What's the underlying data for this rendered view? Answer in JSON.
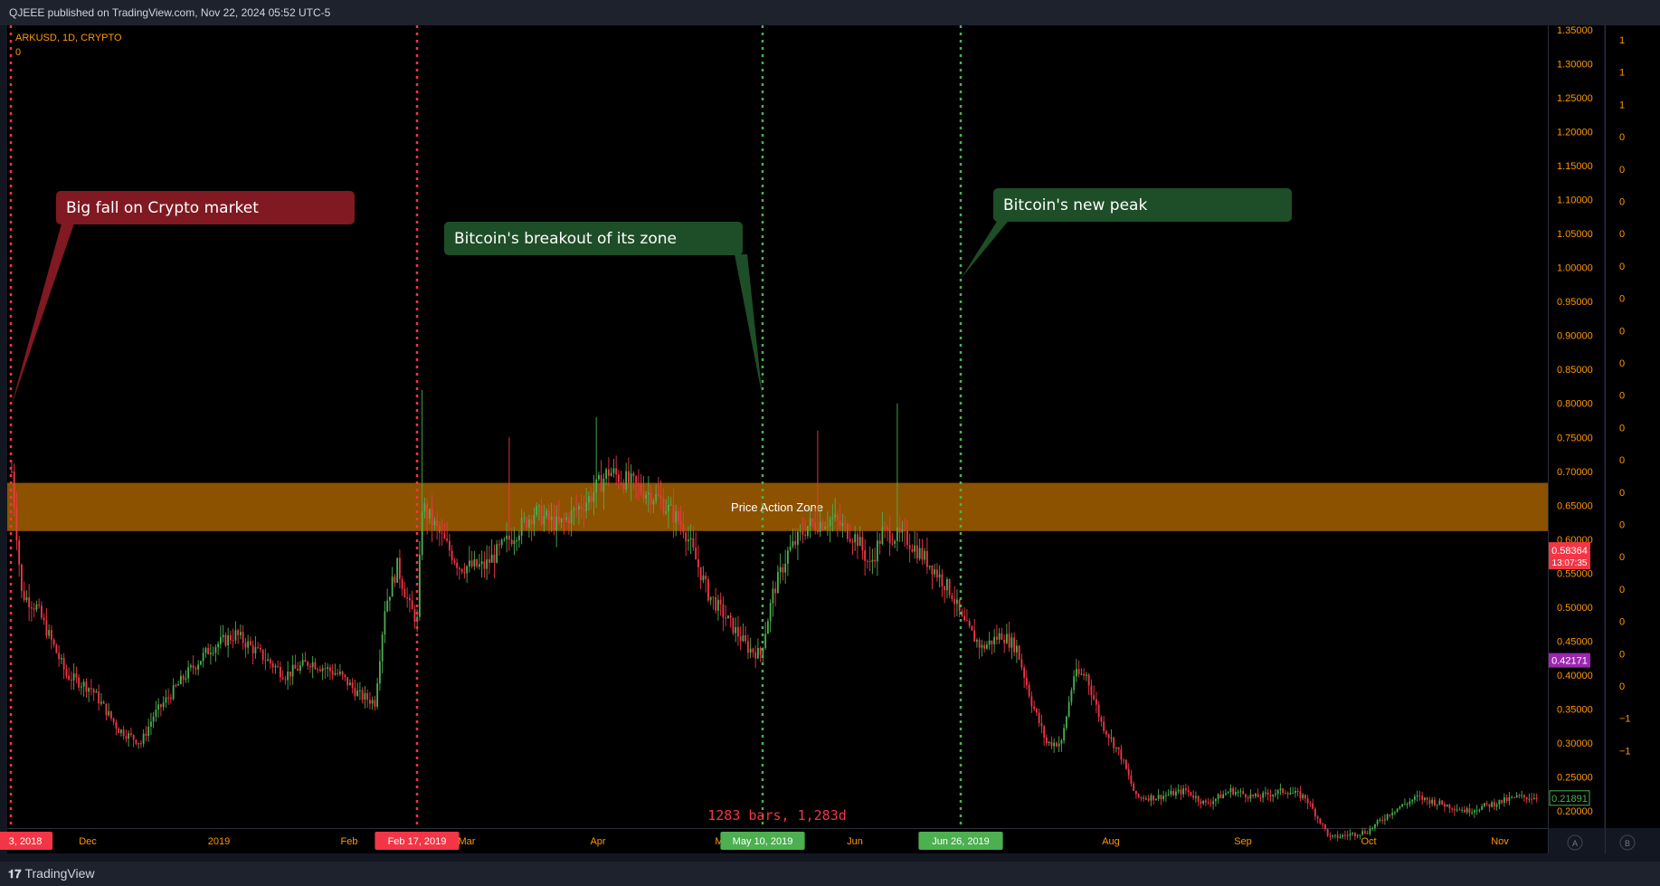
{
  "header": {
    "published": "QJEEE published on TradingView.com, Nov 22, 2024 05:52 UTC-5"
  },
  "footer": {
    "brand": "TradingView"
  },
  "symbol_info": {
    "title": "ARKUSD, 1D, CRYPTO",
    "value": "0"
  },
  "chart_data": {
    "type": "candlestick",
    "title": "ARKUSD, 1D, CRYPTO",
    "x_ticks": [
      "3, 2018",
      "Dec",
      "2019",
      "Feb",
      "Feb 17, 2019",
      "Mar",
      "Apr",
      "Ma",
      "May 10, 2019",
      "Jun",
      "Jun 26, 2019",
      "Aug",
      "Sep",
      "Oct",
      "Nov"
    ],
    "y_ticks": [
      "1.35000",
      "1.30000",
      "1.25000",
      "1.20000",
      "1.15000",
      "1.10000",
      "1.05000",
      "1.00000",
      "0.95000",
      "0.90000",
      "0.85000",
      "0.80000",
      "0.75000",
      "0.70000",
      "0.65000",
      "0.60000",
      "0.55000",
      "0.50000",
      "0.45000",
      "0.40000",
      "0.35000",
      "0.30000",
      "0.25000",
      "0.20000"
    ],
    "ylim": [
      0.175,
      1.36
    ],
    "secondary_axis_ticks": [
      "1",
      "1",
      "1",
      "0",
      "0",
      "0",
      "0",
      "0",
      "0",
      "0",
      "0",
      "0",
      "0",
      "0",
      "0",
      "0",
      "0",
      "0",
      "0",
      "0",
      "0",
      "−1",
      "−1"
    ],
    "price_labels": {
      "current": "0.58364",
      "countdown": "13:07:35",
      "purple": "0.42171",
      "green": "0.21891"
    },
    "price_action_zone": {
      "label": "Price Action Zone",
      "low": 0.612,
      "high": 0.683
    },
    "vertical_markers": [
      {
        "label": "3, 2018",
        "color": "#f23645"
      },
      {
        "label": "Feb 17, 2019",
        "color": "#f23645"
      },
      {
        "label": "May 10, 2019",
        "color": "#4caf50"
      },
      {
        "label": "Jun 26, 2019",
        "color": "#4caf50"
      }
    ],
    "callouts": [
      {
        "text": "Big fall on Crypto market",
        "color": "#801922"
      },
      {
        "text": "Bitcoin's breakout of its zone",
        "color": "#1e4e27"
      },
      {
        "text": "Bitcoin's new peak",
        "color": "#1e4e27"
      }
    ],
    "range_measure": "1283 bars, 1,283d",
    "colors": {
      "up": "#4caf50",
      "down": "#f23645",
      "zone": "#8c5200",
      "axis_text": "#ff9800"
    },
    "keyframes": [
      [
        0,
        0.7
      ],
      [
        4,
        0.52
      ],
      [
        10,
        0.5
      ],
      [
        22,
        0.4
      ],
      [
        32,
        0.38
      ],
      [
        43,
        0.32
      ],
      [
        52,
        0.3
      ],
      [
        57,
        0.34
      ],
      [
        70,
        0.4
      ],
      [
        80,
        0.44
      ],
      [
        90,
        0.46
      ],
      [
        100,
        0.43
      ],
      [
        110,
        0.4
      ],
      [
        120,
        0.42
      ],
      [
        132,
        0.4
      ],
      [
        140,
        0.37
      ],
      [
        146,
        0.36
      ],
      [
        150,
        0.5
      ],
      [
        155,
        0.56
      ],
      [
        160,
        0.5
      ],
      [
        163,
        0.48
      ],
      [
        165,
        0.65
      ],
      [
        170,
        0.62
      ],
      [
        180,
        0.56
      ],
      [
        190,
        0.56
      ],
      [
        200,
        0.6
      ],
      [
        210,
        0.64
      ],
      [
        220,
        0.62
      ],
      [
        232,
        0.66
      ],
      [
        240,
        0.7
      ],
      [
        250,
        0.68
      ],
      [
        260,
        0.66
      ],
      [
        270,
        0.62
      ],
      [
        280,
        0.52
      ],
      [
        290,
        0.47
      ],
      [
        296,
        0.44
      ],
      [
        301,
        0.43
      ],
      [
        306,
        0.52
      ],
      [
        312,
        0.58
      ],
      [
        320,
        0.62
      ],
      [
        330,
        0.63
      ],
      [
        340,
        0.6
      ],
      [
        345,
        0.56
      ],
      [
        350,
        0.61
      ],
      [
        360,
        0.6
      ],
      [
        370,
        0.56
      ],
      [
        378,
        0.52
      ],
      [
        382,
        0.48
      ],
      [
        390,
        0.44
      ],
      [
        398,
        0.46
      ],
      [
        404,
        0.44
      ],
      [
        410,
        0.36
      ],
      [
        416,
        0.3
      ],
      [
        422,
        0.3
      ],
      [
        427,
        0.4
      ],
      [
        432,
        0.4
      ],
      [
        438,
        0.33
      ],
      [
        446,
        0.28
      ],
      [
        452,
        0.22
      ],
      [
        460,
        0.22
      ],
      [
        472,
        0.23
      ],
      [
        480,
        0.21
      ],
      [
        490,
        0.23
      ],
      [
        500,
        0.22
      ],
      [
        512,
        0.23
      ],
      [
        520,
        0.22
      ],
      [
        530,
        0.16
      ],
      [
        545,
        0.17
      ],
      [
        555,
        0.2
      ],
      [
        565,
        0.22
      ],
      [
        575,
        0.21
      ],
      [
        585,
        0.2
      ],
      [
        595,
        0.21
      ],
      [
        605,
        0.22
      ],
      [
        613,
        0.22
      ]
    ],
    "spikes": [
      [
        165,
        0.82
      ],
      [
        200,
        0.75
      ],
      [
        235,
        0.78
      ],
      [
        324,
        0.76
      ],
      [
        356,
        0.8
      ]
    ]
  }
}
